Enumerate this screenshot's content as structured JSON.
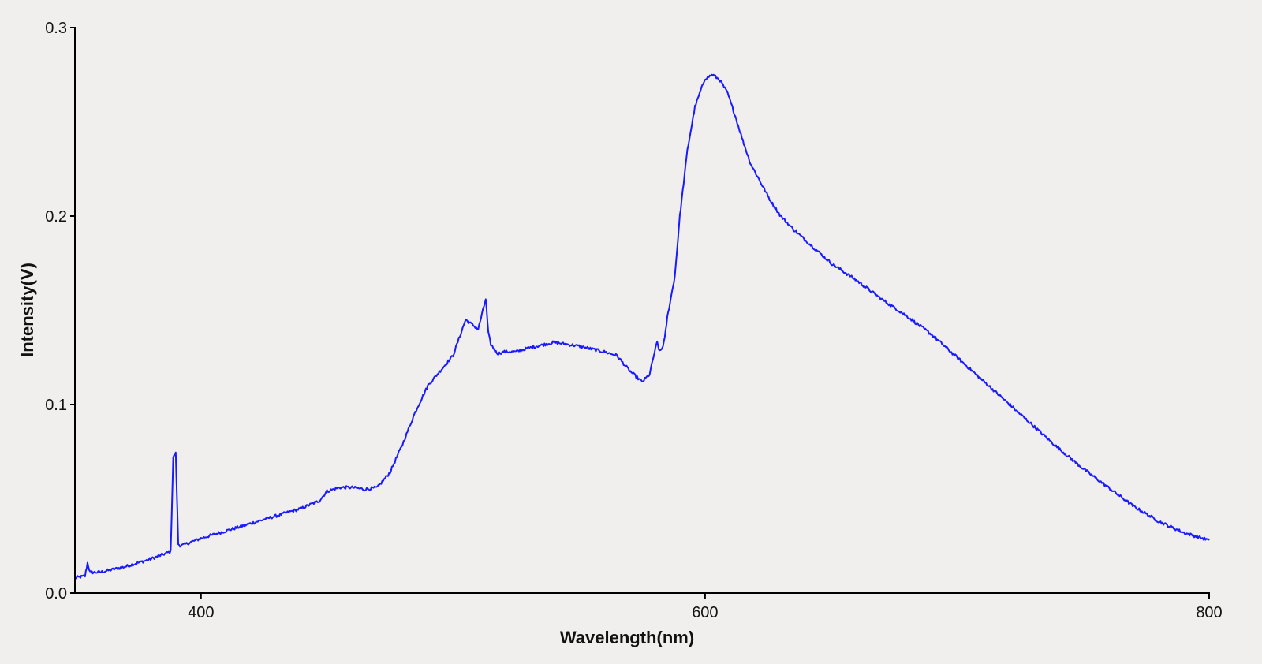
{
  "chart_data": {
    "type": "line",
    "title": "",
    "xlabel": "Wavelength(nm)",
    "ylabel": "Intensity(V)",
    "xlim": [
      350,
      800
    ],
    "ylim": [
      0.0,
      0.3
    ],
    "xticks": [
      {
        "value": 400,
        "label": "400"
      },
      {
        "value": 600,
        "label": "600"
      },
      {
        "value": 800,
        "label": "800"
      }
    ],
    "yticks": [
      {
        "value": 0.0,
        "label": "0.0"
      },
      {
        "value": 0.1,
        "label": "0.1"
      },
      {
        "value": 0.2,
        "label": "0.2"
      },
      {
        "value": 0.3,
        "label": "0.3"
      }
    ],
    "grid": false,
    "legend": "none",
    "line_color": "#1a1aff",
    "series": [
      {
        "x": [
          350,
          354,
          355,
          356,
          360,
          370,
          380,
          388,
          389,
          390,
          391,
          392,
          400,
          410,
          420,
          430,
          440,
          447,
          450,
          455,
          460,
          465,
          470,
          475,
          480,
          485,
          490,
          495,
          500,
          505,
          510,
          513,
          514,
          515,
          516,
          517,
          518,
          520,
          525,
          530,
          540,
          550,
          560,
          565,
          570,
          575,
          578,
          580,
          581,
          582,
          583,
          584,
          585,
          588,
          590,
          593,
          596,
          600,
          603,
          606,
          609,
          612,
          615,
          618,
          622,
          626,
          630,
          635,
          640,
          645,
          650,
          660,
          670,
          680,
          690,
          700,
          710,
          720,
          730,
          740,
          750,
          760,
          770,
          780,
          790,
          800
        ],
        "y": [
          0.008,
          0.009,
          0.016,
          0.011,
          0.011,
          0.014,
          0.018,
          0.022,
          0.072,
          0.074,
          0.026,
          0.025,
          0.029,
          0.033,
          0.037,
          0.041,
          0.045,
          0.049,
          0.054,
          0.056,
          0.056,
          0.055,
          0.056,
          0.064,
          0.079,
          0.096,
          0.11,
          0.118,
          0.126,
          0.145,
          0.14,
          0.156,
          0.138,
          0.132,
          0.13,
          0.128,
          0.127,
          0.128,
          0.128,
          0.13,
          0.133,
          0.131,
          0.128,
          0.126,
          0.118,
          0.112,
          0.116,
          0.128,
          0.133,
          0.128,
          0.13,
          0.135,
          0.146,
          0.168,
          0.2,
          0.235,
          0.258,
          0.273,
          0.275,
          0.272,
          0.265,
          0.253,
          0.24,
          0.228,
          0.218,
          0.208,
          0.2,
          0.193,
          0.187,
          0.181,
          0.175,
          0.166,
          0.156,
          0.147,
          0.137,
          0.125,
          0.113,
          0.101,
          0.089,
          0.077,
          0.066,
          0.056,
          0.046,
          0.038,
          0.032,
          0.028
        ]
      }
    ]
  }
}
